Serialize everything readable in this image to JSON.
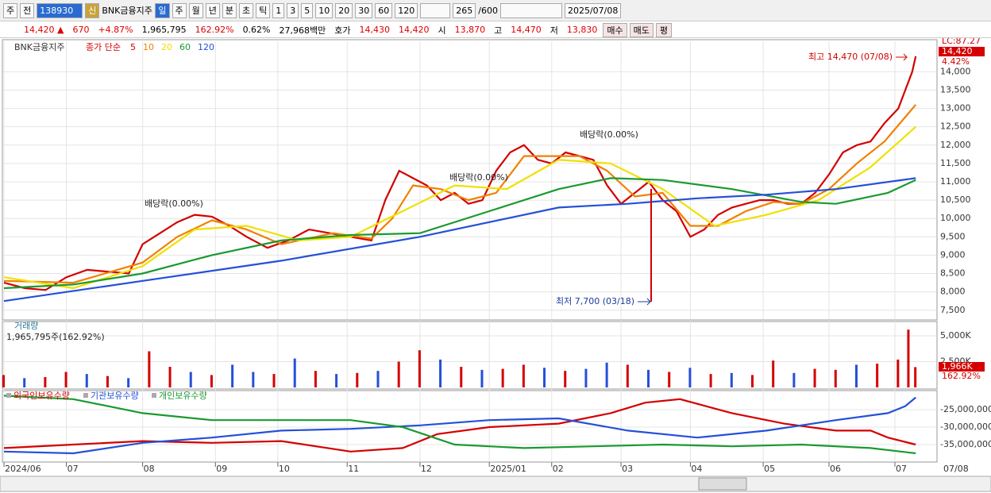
{
  "toolbar": {
    "market": "주",
    "prefix": "전",
    "code": "138930",
    "badge": "신",
    "name": "BNK금융지주",
    "periods": [
      "일",
      "주",
      "월",
      "년",
      "분",
      "초",
      "틱"
    ],
    "intervals": [
      "1",
      "3",
      "5",
      "10",
      "20",
      "30",
      "60",
      "120"
    ],
    "count": "265",
    "max": "/600",
    "date": "2025/07/08"
  },
  "quote": [
    {
      "text": "14,420 ▲",
      "color": "#d00"
    },
    {
      "text": "670",
      "color": "#d00"
    },
    {
      "text": "+4.87%",
      "color": "#d00"
    },
    {
      "text": "1,965,795",
      "color": "#000"
    },
    {
      "text": "162.92%",
      "color": "#d00"
    },
    {
      "text": "0.62%",
      "color": "#000"
    },
    {
      "text": "27,968백만",
      "color": "#000"
    },
    {
      "text": "호가",
      "color": "#000"
    },
    {
      "text": "14,430",
      "color": "#d00"
    },
    {
      "text": "14,420",
      "color": "#d00"
    },
    {
      "text": "시",
      "color": "#000"
    },
    {
      "text": "13,870",
      "color": "#d00"
    },
    {
      "text": "고",
      "color": "#000"
    },
    {
      "text": "14,470",
      "color": "#d00"
    },
    {
      "text": "저",
      "color": "#000"
    },
    {
      "text": "13,830",
      "color": "#d00"
    }
  ],
  "buttons": [
    "매수",
    "매도",
    "평"
  ],
  "chart_data": [
    {
      "type": "line",
      "title": "BNK금융지주",
      "subtitle": "종가 단순",
      "xlim": [
        0,
        268
      ],
      "ylim": [
        7300,
        14700
      ],
      "yticks": [
        {
          "value": 7500,
          "label": "7,500"
        },
        {
          "value": 8000,
          "label": "8,000"
        },
        {
          "value": 8500,
          "label": "8,500"
        },
        {
          "value": 9000,
          "label": "9,000"
        },
        {
          "value": 9500,
          "label": "9,500"
        },
        {
          "value": 10000,
          "label": "10,000"
        },
        {
          "value": 10500,
          "label": "10,500"
        },
        {
          "value": 11000,
          "label": "11,000"
        },
        {
          "value": 11500,
          "label": "11,500"
        },
        {
          "value": 12000,
          "label": "12,000"
        },
        {
          "value": 12500,
          "label": "12,500"
        },
        {
          "value": 13000,
          "label": "13,000"
        },
        {
          "value": 13500,
          "label": "13,500"
        },
        {
          "value": 14000,
          "label": "14,000"
        }
      ],
      "xticks": [
        {
          "value": 0,
          "label": "2024/06"
        },
        {
          "value": 18,
          "label": "07"
        },
        {
          "value": 40,
          "label": "08"
        },
        {
          "value": 61,
          "label": "09"
        },
        {
          "value": 79,
          "label": "10"
        },
        {
          "value": 99,
          "label": "11"
        },
        {
          "value": 120,
          "label": "12"
        },
        {
          "value": 140,
          "label": "2025/01"
        },
        {
          "value": 158,
          "label": "02"
        },
        {
          "value": 178,
          "label": "03"
        },
        {
          "value": 198,
          "label": "04"
        },
        {
          "value": 219,
          "label": "05"
        },
        {
          "value": 238,
          "label": "06"
        },
        {
          "value": 257,
          "label": "07"
        }
      ],
      "last_date": "07/08",
      "grid": true,
      "series": [
        {
          "name": "5",
          "color": "#d40000",
          "x": [
            0,
            6,
            12,
            18,
            24,
            30,
            36,
            40,
            45,
            50,
            55,
            60,
            65,
            70,
            76,
            82,
            88,
            94,
            100,
            106,
            110,
            114,
            118,
            122,
            126,
            130,
            134,
            138,
            142,
            146,
            150,
            154,
            158,
            162,
            166,
            170,
            174,
            178,
            182,
            186,
            190,
            194,
            198,
            202,
            206,
            210,
            214,
            218,
            222,
            226,
            230,
            234,
            238,
            242,
            246,
            250,
            254,
            258,
            262,
            263
          ],
          "values": [
            8250,
            8100,
            8050,
            8400,
            8600,
            8550,
            8500,
            9300,
            9600,
            9900,
            10100,
            10050,
            9800,
            9500,
            9200,
            9400,
            9700,
            9600,
            9500,
            9400,
            10500,
            11300,
            11100,
            10900,
            10500,
            10700,
            10400,
            10500,
            11300,
            11800,
            12000,
            11600,
            11500,
            11800,
            11700,
            11600,
            10900,
            10400,
            10700,
            11000,
            10500,
            10200,
            9500,
            9700,
            10100,
            10300,
            10400,
            10500,
            10500,
            10400,
            10400,
            10700,
            11200,
            11800,
            12000,
            12100,
            12600,
            13000,
            14000,
            14420
          ]
        },
        {
          "name": "10",
          "color": "#f08000",
          "x": [
            0,
            20,
            40,
            50,
            60,
            70,
            80,
            95,
            106,
            112,
            118,
            126,
            134,
            142,
            150,
            158,
            166,
            174,
            182,
            190,
            198,
            206,
            214,
            222,
            230,
            238,
            246,
            254,
            263
          ],
          "values": [
            8300,
            8250,
            8800,
            9500,
            9950,
            9700,
            9300,
            9600,
            9450,
            10000,
            10900,
            10800,
            10500,
            10700,
            11700,
            11700,
            11700,
            11300,
            10600,
            10700,
            9800,
            9800,
            10200,
            10450,
            10400,
            10800,
            11500,
            12100,
            13100
          ]
        },
        {
          "name": "20",
          "color": "#f0e000",
          "x": [
            0,
            20,
            40,
            55,
            70,
            85,
            100,
            115,
            130,
            145,
            160,
            175,
            190,
            205,
            220,
            235,
            250,
            263
          ],
          "values": [
            8400,
            8100,
            8700,
            9700,
            9800,
            9400,
            9500,
            10200,
            10900,
            10800,
            11600,
            11500,
            10800,
            9800,
            10100,
            10500,
            11400,
            12500
          ]
        },
        {
          "name": "60",
          "color": "#1a9a30",
          "x": [
            0,
            20,
            40,
            60,
            80,
            100,
            120,
            140,
            160,
            175,
            190,
            210,
            230,
            240,
            255,
            263
          ],
          "values": [
            8100,
            8200,
            8500,
            9000,
            9400,
            9550,
            9600,
            10200,
            10800,
            11100,
            11050,
            10800,
            10450,
            10400,
            10700,
            11050
          ]
        },
        {
          "name": "120",
          "color": "#2450d8",
          "x": [
            0,
            40,
            80,
            120,
            160,
            180,
            200,
            220,
            240,
            263
          ],
          "values": [
            7750,
            8300,
            8850,
            9500,
            10300,
            10400,
            10550,
            10650,
            10800,
            11100
          ]
        }
      ],
      "annotations": [
        "최고 14,470 (07/08)",
        "최저 7,700 (03/18)",
        "배당락(0.00%)",
        "배당락(0.00%)",
        "배당락(0.00%)"
      ],
      "right_labels": [
        "LC:87.27",
        "14,420",
        "4.42%"
      ]
    },
    {
      "type": "bar",
      "title": "거래량",
      "subtitle": "1,965,795주(162.92%)",
      "xlim": [
        0,
        268
      ],
      "ylim": [
        0,
        6000
      ],
      "yticks": [
        {
          "value": 2500,
          "label": "2,500K"
        },
        {
          "value": 5000,
          "label": "5,000K"
        }
      ],
      "x": [
        0,
        6,
        12,
        18,
        24,
        30,
        36,
        42,
        48,
        54,
        60,
        66,
        72,
        78,
        84,
        90,
        96,
        102,
        108,
        114,
        120,
        126,
        132,
        138,
        144,
        150,
        156,
        162,
        168,
        174,
        180,
        186,
        192,
        198,
        204,
        210,
        216,
        222,
        228,
        234,
        240,
        246,
        252,
        258,
        261,
        263
      ],
      "values": [
        1200,
        900,
        1000,
        1500,
        1300,
        1100,
        900,
        3500,
        2000,
        1500,
        1200,
        2200,
        1500,
        1300,
        2800,
        1600,
        1300,
        1400,
        1600,
        2500,
        3600,
        2700,
        2000,
        1700,
        1800,
        2200,
        1900,
        1600,
        1800,
        2400,
        2200,
        1700,
        1500,
        1900,
        1300,
        1400,
        1200,
        2600,
        1400,
        1800,
        1700,
        2200,
        2300,
        2700,
        5600,
        1966
      ],
      "colors": [
        "#d40000",
        "#2450d8",
        "#d40000",
        "#d40000",
        "#2450d8",
        "#d40000",
        "#2450d8",
        "#d40000",
        "#d40000",
        "#2450d8",
        "#d40000",
        "#2450d8",
        "#2450d8",
        "#d40000",
        "#2450d8",
        "#d40000",
        "#2450d8",
        "#d40000",
        "#2450d8",
        "#d40000",
        "#d40000",
        "#2450d8",
        "#d40000",
        "#2450d8",
        "#d40000",
        "#d40000",
        "#2450d8",
        "#d40000",
        "#2450d8",
        "#2450d8",
        "#d40000",
        "#2450d8",
        "#d40000",
        "#2450d8",
        "#d40000",
        "#2450d8",
        "#d40000",
        "#d40000",
        "#2450d8",
        "#d40000",
        "#d40000",
        "#2450d8",
        "#d40000",
        "#d40000",
        "#d40000",
        "#d40000"
      ],
      "right_labels": [
        "1,966K",
        "162.92%"
      ]
    },
    {
      "type": "line",
      "xlim": [
        0,
        268
      ],
      "ylim": [
        -40000000,
        -20000000
      ],
      "yticks": [
        {
          "value": -25000000,
          "label": "-25,000,000"
        },
        {
          "value": -30000000,
          "label": "-30,000,000"
        },
        {
          "value": -35000000,
          "label": "-35,000,000"
        }
      ],
      "series": [
        {
          "name": "외국인보유수량",
          "color": "#d40000",
          "x": [
            0,
            20,
            40,
            60,
            80,
            100,
            115,
            125,
            140,
            160,
            175,
            185,
            195,
            210,
            225,
            240,
            250,
            255,
            263
          ],
          "values": [
            -36000000,
            -35000000,
            -34000000,
            -34500000,
            -34000000,
            -37000000,
            -36000000,
            -32000000,
            -30000000,
            -29000000,
            -26000000,
            -23000000,
            -22000000,
            -26000000,
            -29000000,
            -31000000,
            -31000000,
            -33000000,
            -35000000
          ]
        },
        {
          "name": "기관보유수량",
          "color": "#2450d8",
          "x": [
            0,
            20,
            40,
            60,
            80,
            100,
            120,
            140,
            160,
            180,
            200,
            220,
            240,
            255,
            260,
            263
          ],
          "values": [
            -37000000,
            -37500000,
            -34500000,
            -33000000,
            -31000000,
            -30500000,
            -29500000,
            -28000000,
            -27500000,
            -31000000,
            -33000000,
            -31000000,
            -28000000,
            -26000000,
            -24000000,
            -21500000
          ]
        },
        {
          "name": "개인보유수량",
          "color": "#1a9a30",
          "x": [
            0,
            20,
            40,
            60,
            80,
            100,
            115,
            130,
            150,
            170,
            190,
            210,
            230,
            250,
            263
          ],
          "values": [
            -21000000,
            -22000000,
            -26000000,
            -28000000,
            -28000000,
            -28000000,
            -30000000,
            -35000000,
            -36000000,
            -35500000,
            -35000000,
            -35500000,
            -35000000,
            -36000000,
            -37500000
          ]
        }
      ]
    }
  ]
}
